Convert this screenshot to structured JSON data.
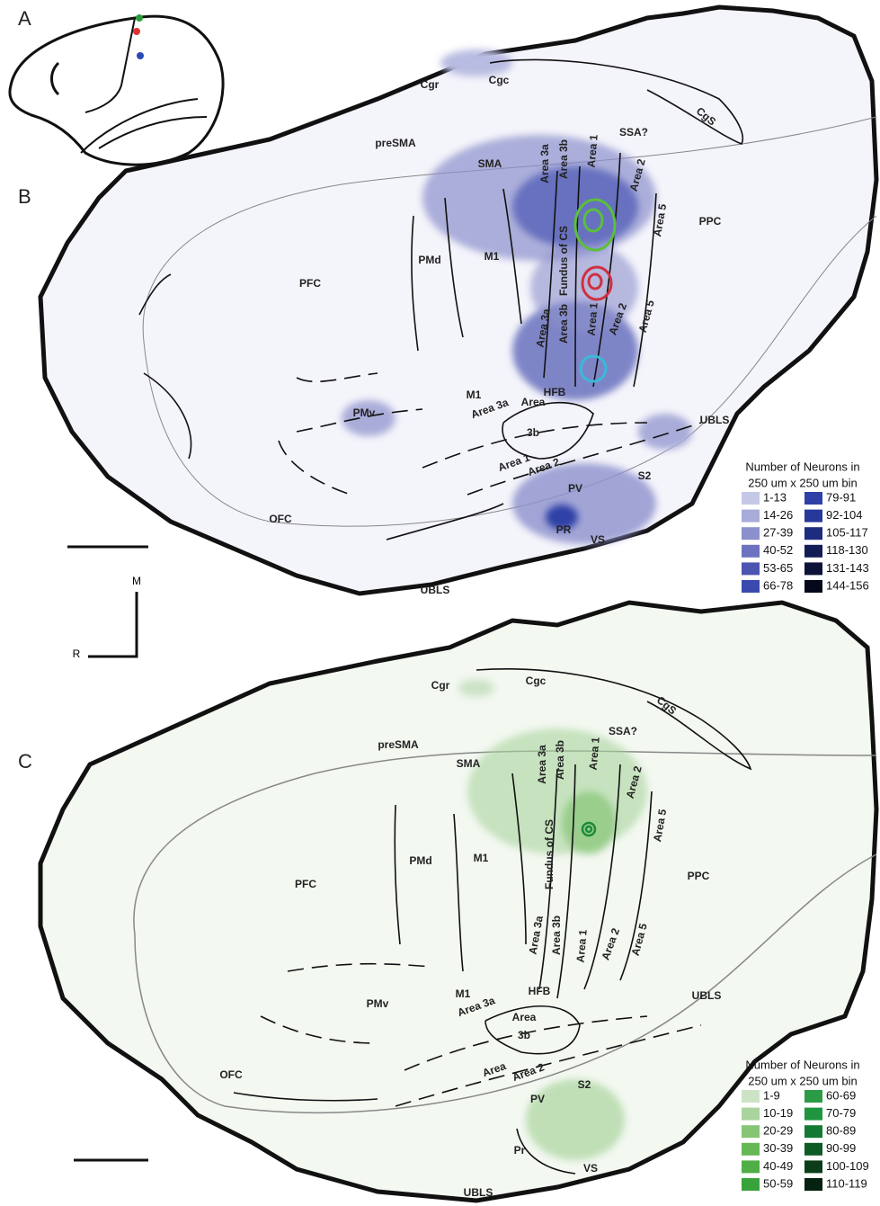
{
  "panels": [
    "A",
    "B",
    "C"
  ],
  "orientation": {
    "medial": "M",
    "rostral": "R"
  },
  "panel_b": {
    "regions": [
      "Cgr",
      "Cgc",
      "CgS",
      "preSMA",
      "SSA?",
      "SMA",
      "Area 3a",
      "Area 3b",
      "Area 1",
      "Area 2",
      "Area 5",
      "PPC",
      "PFC",
      "PMd",
      "M1",
      "Fundus of CS",
      "Area 3a",
      "Area 3b",
      "Area 1",
      "Area 2",
      "Area 5",
      "HFB",
      "M1",
      "Area 3a",
      "Area",
      "3b",
      "PMv",
      "UBLS",
      "Area 1",
      "Area 2",
      "S2",
      "PV",
      "OFC",
      "PR",
      "VS",
      "UBLS"
    ],
    "legend": {
      "title": [
        "Number of Neurons in",
        "250 um x 250 um bin"
      ],
      "entries": [
        {
          "label": "1-13",
          "color": "#c5c8e6"
        },
        {
          "label": "14-26",
          "color": "#a9acd9"
        },
        {
          "label": "27-39",
          "color": "#8c90cc"
        },
        {
          "label": "40-52",
          "color": "#6c72bf"
        },
        {
          "label": "53-65",
          "color": "#4c55b1"
        },
        {
          "label": "66-78",
          "color": "#3a49ad"
        },
        {
          "label": "79-91",
          "color": "#2f41a6"
        },
        {
          "label": "92-104",
          "color": "#263899"
        },
        {
          "label": "105-117",
          "color": "#1e2c80"
        },
        {
          "label": "118-130",
          "color": "#121c55"
        },
        {
          "label": "131-143",
          "color": "#0c1238"
        },
        {
          "label": "144-156",
          "color": "#05081a"
        }
      ]
    }
  },
  "panel_c": {
    "regions": [
      "Cgr",
      "Cgc",
      "CgS",
      "preSMA",
      "SSA?",
      "SMA",
      "Area 3a",
      "Area 3b",
      "Area 1",
      "Area 2",
      "Area 5",
      "PPC",
      "PFC",
      "PMd",
      "M1",
      "Fundus of CS",
      "Area 3a",
      "Area 3b",
      "Area 1",
      "Area 2",
      "Area 5",
      "HFB",
      "M1",
      "Area 3a",
      "Area",
      "3b",
      "PMv",
      "UBLS",
      "Area",
      "Area 2",
      "S2",
      "PV",
      "OFC",
      "Pr",
      "VS",
      "UBLS"
    ],
    "legend": {
      "title": [
        "Number of Neurons in",
        "250 um x 250 um bin"
      ],
      "entries": [
        {
          "label": "1-9",
          "color": "#cde3c6"
        },
        {
          "label": "10-19",
          "color": "#a9d49d"
        },
        {
          "label": "20-29",
          "color": "#86c576"
        },
        {
          "label": "30-39",
          "color": "#66b856"
        },
        {
          "label": "40-49",
          "color": "#4fae45"
        },
        {
          "label": "50-59",
          "color": "#39a33b"
        },
        {
          "label": "60-69",
          "color": "#2c9b46"
        },
        {
          "label": "70-79",
          "color": "#1f9540"
        },
        {
          "label": "80-89",
          "color": "#147a33"
        },
        {
          "label": "90-99",
          "color": "#0e5b25"
        },
        {
          "label": "100-109",
          "color": "#0a3d18"
        },
        {
          "label": "110-119",
          "color": "#052110"
        }
      ]
    }
  }
}
